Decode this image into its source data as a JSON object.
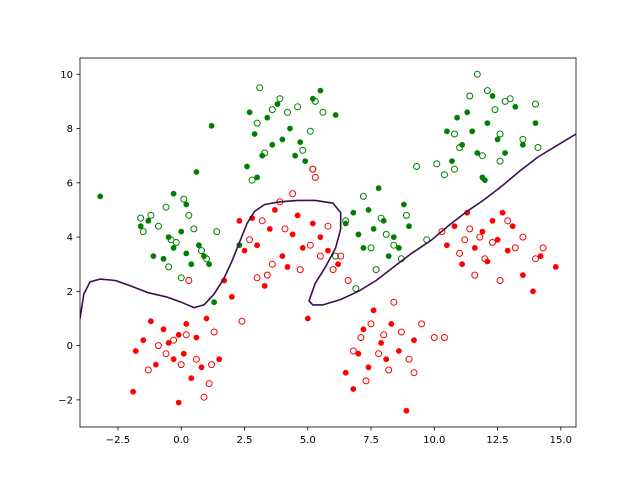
{
  "chart_data": {
    "type": "scatter",
    "title": "",
    "xlabel": "",
    "ylabel": "",
    "xlim": [
      -4.0,
      15.6
    ],
    "ylim": [
      -3.0,
      10.6
    ],
    "grid": false,
    "legend": "none",
    "xticks": [
      -2.5,
      0.0,
      2.5,
      5.0,
      7.5,
      10.0,
      12.5,
      15.0
    ],
    "yticks": [
      -2,
      0,
      2,
      4,
      6,
      8,
      10
    ],
    "colors": {
      "green": "#008000",
      "red": "#ff0000",
      "boundary": "#3b0f4f"
    },
    "series": [
      {
        "color": "green",
        "marker": "filled-circle",
        "points": [
          [
            -3.2,
            5.5
          ],
          [
            -1.6,
            4.4
          ],
          [
            -1.3,
            4.6
          ],
          [
            -1.1,
            3.3
          ],
          [
            -0.7,
            3.2
          ],
          [
            -0.5,
            4.0
          ],
          [
            -0.3,
            3.6
          ],
          [
            0.0,
            4.2
          ],
          [
            0.2,
            3.4
          ],
          [
            0.4,
            3.0
          ],
          [
            0.7,
            3.7
          ],
          [
            0.9,
            3.3
          ],
          [
            1.1,
            3.0
          ],
          [
            1.3,
            1.6
          ],
          [
            -0.3,
            5.6
          ],
          [
            0.2,
            5.2
          ],
          [
            0.6,
            6.4
          ],
          [
            1.2,
            8.1
          ],
          [
            2.3,
            3.7
          ],
          [
            2.6,
            6.6
          ],
          [
            2.7,
            8.6
          ],
          [
            2.9,
            7.8
          ],
          [
            3.2,
            7.0
          ],
          [
            3.4,
            8.4
          ],
          [
            3.6,
            7.4
          ],
          [
            3.8,
            8.9
          ],
          [
            4.0,
            7.6
          ],
          [
            4.3,
            8.0
          ],
          [
            4.5,
            7.0
          ],
          [
            4.7,
            7.5
          ],
          [
            4.9,
            6.8
          ],
          [
            5.2,
            9.1
          ],
          [
            5.5,
            9.4
          ],
          [
            6.1,
            8.5
          ],
          [
            3.0,
            6.2
          ],
          [
            6.5,
            4.5
          ],
          [
            6.8,
            4.9
          ],
          [
            7.0,
            4.1
          ],
          [
            7.2,
            3.6
          ],
          [
            7.4,
            5.0
          ],
          [
            7.6,
            4.3
          ],
          [
            7.8,
            5.8
          ],
          [
            8.0,
            4.6
          ],
          [
            8.2,
            3.3
          ],
          [
            8.4,
            4.0
          ],
          [
            8.6,
            3.6
          ],
          [
            8.8,
            5.2
          ],
          [
            9.0,
            4.4
          ],
          [
            10.5,
            7.9
          ],
          [
            10.7,
            6.8
          ],
          [
            10.9,
            8.4
          ],
          [
            11.1,
            7.4
          ],
          [
            11.3,
            8.6
          ],
          [
            11.5,
            7.9
          ],
          [
            11.7,
            7.1
          ],
          [
            11.9,
            6.2
          ],
          [
            12.1,
            8.2
          ],
          [
            12.3,
            9.2
          ],
          [
            12.5,
            7.6
          ],
          [
            12.8,
            7.1
          ],
          [
            13.2,
            8.8
          ],
          [
            13.5,
            7.4
          ],
          [
            14.0,
            8.2
          ],
          [
            12.0,
            6.1
          ]
        ]
      },
      {
        "color": "green",
        "marker": "hollow-circle",
        "points": [
          [
            -1.6,
            4.7
          ],
          [
            -1.5,
            4.2
          ],
          [
            -1.2,
            4.8
          ],
          [
            -0.9,
            4.4
          ],
          [
            -0.6,
            5.1
          ],
          [
            -0.4,
            3.9
          ],
          [
            -0.2,
            3.8
          ],
          [
            0.1,
            5.4
          ],
          [
            0.3,
            4.8
          ],
          [
            0.5,
            4.3
          ],
          [
            0.8,
            3.5
          ],
          [
            1.0,
            3.2
          ],
          [
            1.4,
            4.2
          ],
          [
            -0.5,
            2.9
          ],
          [
            0.0,
            2.5
          ],
          [
            2.8,
            6.1
          ],
          [
            3.0,
            8.2
          ],
          [
            3.1,
            9.5
          ],
          [
            3.3,
            7.1
          ],
          [
            3.6,
            8.7
          ],
          [
            3.9,
            9.1
          ],
          [
            4.2,
            8.6
          ],
          [
            4.6,
            8.8
          ],
          [
            4.8,
            7.2
          ],
          [
            5.1,
            7.9
          ],
          [
            5.3,
            9.0
          ],
          [
            5.6,
            8.6
          ],
          [
            5.2,
            6.5
          ],
          [
            6.1,
            3.3
          ],
          [
            6.5,
            4.6
          ],
          [
            6.9,
            2.1
          ],
          [
            7.2,
            5.5
          ],
          [
            7.5,
            3.6
          ],
          [
            7.7,
            2.8
          ],
          [
            7.9,
            4.7
          ],
          [
            8.1,
            4.1
          ],
          [
            8.4,
            3.7
          ],
          [
            8.7,
            3.2
          ],
          [
            8.9,
            4.8
          ],
          [
            9.3,
            6.6
          ],
          [
            9.7,
            3.9
          ],
          [
            10.1,
            6.7
          ],
          [
            10.4,
            6.3
          ],
          [
            10.8,
            7.8
          ],
          [
            11.0,
            7.3
          ],
          [
            11.4,
            9.2
          ],
          [
            11.7,
            10.0
          ],
          [
            11.9,
            7.0
          ],
          [
            12.1,
            9.4
          ],
          [
            12.4,
            8.7
          ],
          [
            12.6,
            7.8
          ],
          [
            12.8,
            9.0
          ],
          [
            13.0,
            9.1
          ],
          [
            13.5,
            7.6
          ],
          [
            14.0,
            8.9
          ],
          [
            14.1,
            7.3
          ],
          [
            10.8,
            6.5
          ],
          [
            12.6,
            6.8
          ]
        ]
      },
      {
        "color": "red",
        "marker": "filled-circle",
        "points": [
          [
            -1.9,
            -1.7
          ],
          [
            -1.8,
            -0.2
          ],
          [
            -1.5,
            0.2
          ],
          [
            -1.2,
            0.9
          ],
          [
            -1.0,
            -0.7
          ],
          [
            -0.7,
            0.6
          ],
          [
            -0.5,
            0.1
          ],
          [
            -0.3,
            -0.5
          ],
          [
            -0.1,
            0.4
          ],
          [
            0.1,
            -0.3
          ],
          [
            0.2,
            0.8
          ],
          [
            0.4,
            -1.2
          ],
          [
            0.6,
            0.3
          ],
          [
            0.8,
            -0.8
          ],
          [
            1.0,
            1.0
          ],
          [
            -0.1,
            -2.1
          ],
          [
            1.5,
            -0.5
          ],
          [
            2.0,
            1.8
          ],
          [
            2.3,
            4.6
          ],
          [
            1.7,
            2.4
          ],
          [
            2.5,
            3.5
          ],
          [
            2.8,
            4.7
          ],
          [
            3.0,
            3.7
          ],
          [
            3.3,
            2.2
          ],
          [
            3.5,
            4.3
          ],
          [
            3.7,
            5.0
          ],
          [
            4.0,
            3.3
          ],
          [
            4.2,
            2.9
          ],
          [
            4.4,
            4.1
          ],
          [
            4.6,
            4.8
          ],
          [
            4.8,
            3.6
          ],
          [
            5.0,
            1.0
          ],
          [
            5.2,
            4.5
          ],
          [
            5.5,
            4.0
          ],
          [
            5.8,
            3.5
          ],
          [
            6.2,
            3.0
          ],
          [
            6.5,
            -1.0
          ],
          [
            6.8,
            -1.6
          ],
          [
            7.0,
            -0.3
          ],
          [
            7.2,
            0.6
          ],
          [
            7.4,
            -0.8
          ],
          [
            7.6,
            1.3
          ],
          [
            7.9,
            0.1
          ],
          [
            8.1,
            -0.5
          ],
          [
            8.3,
            0.8
          ],
          [
            8.6,
            -0.2
          ],
          [
            8.9,
            -2.4
          ],
          [
            9.2,
            0.2
          ],
          [
            10.5,
            3.7
          ],
          [
            10.8,
            4.4
          ],
          [
            11.1,
            3.0
          ],
          [
            11.3,
            4.9
          ],
          [
            11.6,
            3.6
          ],
          [
            11.9,
            4.2
          ],
          [
            12.1,
            3.1
          ],
          [
            12.3,
            4.6
          ],
          [
            12.5,
            3.9
          ],
          [
            12.7,
            4.9
          ],
          [
            12.9,
            3.5
          ],
          [
            13.1,
            4.4
          ],
          [
            13.5,
            2.6
          ],
          [
            13.9,
            2.0
          ],
          [
            14.2,
            3.3
          ],
          [
            14.8,
            2.9
          ]
        ]
      },
      {
        "color": "red",
        "marker": "hollow-circle",
        "points": [
          [
            -1.3,
            -0.9
          ],
          [
            -0.9,
            0.0
          ],
          [
            -0.6,
            -0.3
          ],
          [
            -0.3,
            0.2
          ],
          [
            0.0,
            -0.7
          ],
          [
            0.2,
            0.4
          ],
          [
            0.3,
            2.4
          ],
          [
            0.6,
            -0.5
          ],
          [
            0.9,
            -1.9
          ],
          [
            1.1,
            -1.4
          ],
          [
            1.2,
            -0.7
          ],
          [
            1.3,
            0.5
          ],
          [
            2.4,
            0.9
          ],
          [
            2.7,
            3.9
          ],
          [
            3.0,
            2.5
          ],
          [
            3.2,
            4.6
          ],
          [
            3.4,
            2.6
          ],
          [
            3.6,
            3.0
          ],
          [
            3.9,
            5.3
          ],
          [
            4.1,
            4.3
          ],
          [
            4.4,
            5.6
          ],
          [
            4.7,
            2.8
          ],
          [
            5.1,
            3.7
          ],
          [
            5.3,
            6.2
          ],
          [
            5.5,
            3.3
          ],
          [
            5.8,
            4.4
          ],
          [
            6.0,
            2.8
          ],
          [
            6.3,
            3.3
          ],
          [
            6.6,
            2.4
          ],
          [
            6.8,
            -0.2
          ],
          [
            7.1,
            0.3
          ],
          [
            7.3,
            -1.3
          ],
          [
            7.5,
            0.8
          ],
          [
            7.8,
            -0.3
          ],
          [
            8.0,
            0.4
          ],
          [
            8.2,
            -0.9
          ],
          [
            8.4,
            1.6
          ],
          [
            8.7,
            0.5
          ],
          [
            9.0,
            -0.5
          ],
          [
            9.2,
            -1.0
          ],
          [
            9.5,
            0.8
          ],
          [
            10.0,
            0.3
          ],
          [
            10.4,
            0.3
          ],
          [
            11.0,
            3.4
          ],
          [
            11.4,
            4.3
          ],
          [
            11.6,
            2.6
          ],
          [
            11.8,
            4.0
          ],
          [
            12.0,
            3.2
          ],
          [
            12.3,
            3.8
          ],
          [
            12.6,
            2.4
          ],
          [
            12.9,
            4.6
          ],
          [
            13.2,
            3.6
          ],
          [
            13.5,
            4.0
          ],
          [
            14.0,
            3.2
          ],
          [
            14.3,
            3.6
          ],
          [
            5.2,
            6.5
          ],
          [
            10.3,
            4.2
          ],
          [
            11.2,
            3.9
          ]
        ]
      }
    ],
    "boundary": [
      [
        -4.0,
        1.0
      ],
      [
        -3.85,
        1.9
      ],
      [
        -3.6,
        2.35
      ],
      [
        -3.2,
        2.45
      ],
      [
        -2.6,
        2.4
      ],
      [
        -2.0,
        2.2
      ],
      [
        -1.3,
        1.95
      ],
      [
        -0.6,
        1.8
      ],
      [
        0.0,
        1.6
      ],
      [
        0.5,
        1.4
      ],
      [
        0.9,
        1.5
      ],
      [
        1.3,
        1.9
      ],
      [
        1.7,
        2.5
      ],
      [
        2.0,
        3.1
      ],
      [
        2.3,
        3.8
      ],
      [
        2.6,
        4.5
      ],
      [
        2.9,
        4.95
      ],
      [
        3.3,
        5.2
      ],
      [
        3.9,
        5.3
      ],
      [
        4.6,
        5.35
      ],
      [
        5.3,
        5.35
      ],
      [
        6.0,
        5.25
      ],
      [
        6.3,
        4.9
      ],
      [
        6.3,
        4.3
      ],
      [
        6.1,
        3.6
      ],
      [
        5.7,
        2.9
      ],
      [
        5.3,
        2.3
      ],
      [
        5.05,
        1.65
      ],
      [
        5.2,
        1.5
      ],
      [
        5.6,
        1.5
      ],
      [
        6.3,
        1.7
      ],
      [
        7.0,
        2.0
      ],
      [
        7.7,
        2.4
      ],
      [
        8.4,
        2.9
      ],
      [
        9.1,
        3.4
      ],
      [
        9.9,
        3.9
      ],
      [
        10.6,
        4.45
      ],
      [
        11.3,
        4.95
      ],
      [
        12.0,
        5.4
      ],
      [
        12.7,
        5.9
      ],
      [
        13.4,
        6.45
      ],
      [
        14.1,
        6.95
      ],
      [
        14.8,
        7.35
      ],
      [
        15.6,
        7.8
      ]
    ]
  }
}
